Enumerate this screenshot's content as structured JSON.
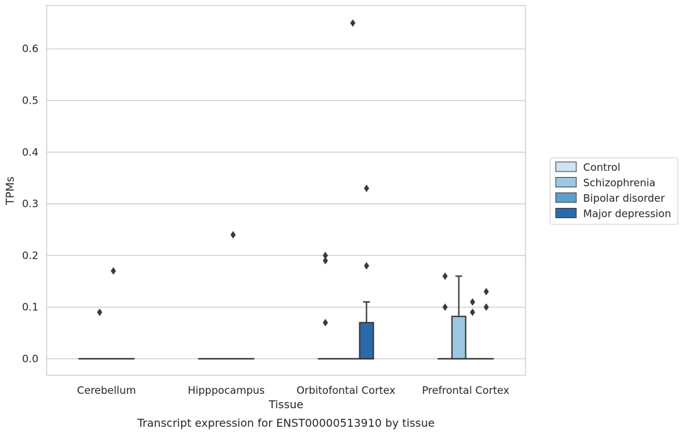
{
  "chart_data": {
    "type": "boxplot",
    "xlabel": "Tissue",
    "ylabel": "TPMs",
    "caption": "Transcript expression for ENST00000513910 by tissue",
    "ylim": [
      -0.032,
      0.684
    ],
    "yticks": [
      0.0,
      0.1,
      0.2,
      0.3,
      0.4,
      0.5,
      0.6
    ],
    "ytick_labels": [
      "0.0",
      "0.1",
      "0.2",
      "0.3",
      "0.4",
      "0.5",
      "0.6"
    ],
    "grid": "horizontal",
    "legend_placement": "right",
    "categories": [
      "Cerebellum",
      "Hipppocampus",
      "Orbitofontal Cortex",
      "Prefrontal Cortex"
    ],
    "series": [
      {
        "name": "Control",
        "color": "#d1e2f2",
        "boxes": [
          {
            "q1": 0,
            "median": 0,
            "q3": 0,
            "whisker_low": 0,
            "whisker_high": 0,
            "outliers": []
          },
          {
            "q1": 0,
            "median": 0,
            "q3": 0,
            "whisker_low": 0,
            "whisker_high": 0,
            "outliers": []
          },
          {
            "q1": 0,
            "median": 0,
            "q3": 0,
            "whisker_low": 0,
            "whisker_high": 0,
            "outliers": [
              0.07,
              0.19,
              0.2
            ]
          },
          {
            "q1": 0,
            "median": 0,
            "q3": 0,
            "whisker_low": 0,
            "whisker_high": 0,
            "outliers": [
              0.1,
              0.16
            ]
          }
        ]
      },
      {
        "name": "Schizophrenia",
        "color": "#9ac8e0",
        "boxes": [
          {
            "q1": 0,
            "median": 0,
            "q3": 0,
            "whisker_low": 0,
            "whisker_high": 0,
            "outliers": [
              0.09
            ]
          },
          {
            "q1": 0,
            "median": 0,
            "q3": 0,
            "whisker_low": 0,
            "whisker_high": 0,
            "outliers": []
          },
          {
            "q1": 0,
            "median": 0,
            "q3": 0,
            "whisker_low": 0,
            "whisker_high": 0,
            "outliers": []
          },
          {
            "q1": 0,
            "median": 0,
            "q3": 0.082,
            "whisker_low": 0,
            "whisker_high": 0.16,
            "outliers": []
          }
        ]
      },
      {
        "name": "Bipolar disorder",
        "color": "#5aa0cd",
        "boxes": [
          {
            "q1": 0,
            "median": 0,
            "q3": 0,
            "whisker_low": 0,
            "whisker_high": 0,
            "outliers": [
              0.17
            ]
          },
          {
            "q1": 0,
            "median": 0,
            "q3": 0,
            "whisker_low": 0,
            "whisker_high": 0,
            "outliers": [
              0.24
            ]
          },
          {
            "q1": 0,
            "median": 0,
            "q3": 0,
            "whisker_low": 0,
            "whisker_high": 0,
            "outliers": [
              0.65
            ]
          },
          {
            "q1": 0,
            "median": 0,
            "q3": 0,
            "whisker_low": 0,
            "whisker_high": 0,
            "outliers": [
              0.09,
              0.11
            ]
          }
        ]
      },
      {
        "name": "Major depression",
        "color": "#2a6aaa",
        "boxes": [
          {
            "q1": 0,
            "median": 0,
            "q3": 0,
            "whisker_low": 0,
            "whisker_high": 0,
            "outliers": []
          },
          {
            "q1": 0,
            "median": 0,
            "q3": 0,
            "whisker_low": 0,
            "whisker_high": 0,
            "outliers": []
          },
          {
            "q1": 0,
            "median": 0,
            "q3": 0.07,
            "whisker_low": 0,
            "whisker_high": 0.11,
            "outliers": [
              0.18,
              0.33
            ]
          },
          {
            "q1": 0,
            "median": 0,
            "q3": 0,
            "whisker_low": 0,
            "whisker_high": 0,
            "outliers": [
              0.1,
              0.13
            ]
          }
        ]
      }
    ]
  }
}
